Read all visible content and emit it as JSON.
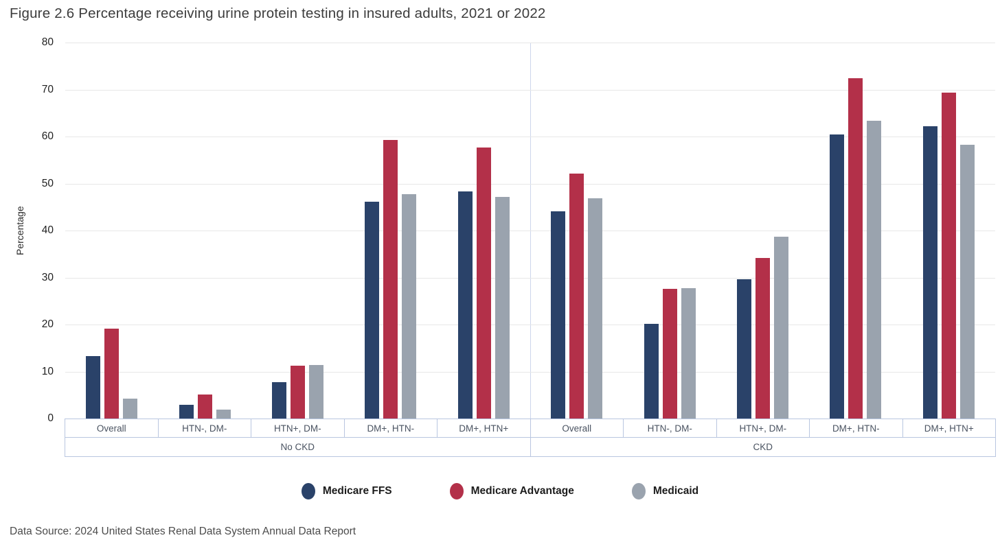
{
  "title": "Figure 2.6 Percentage receiving urine protein testing in insured adults, 2021 or 2022",
  "footer": {
    "data_source": "Data Source: 2024 United States Renal Data System Annual Data Report"
  },
  "style": {
    "grid_color": "#e7e7e7",
    "axis_box_border_color": "#b9c6e0",
    "group_separator_color": "#ccd6ec"
  },
  "chart_data": {
    "type": "bar",
    "title": "Figure 2.6 Percentage receiving urine protein testing in insured adults, 2021 or 2022",
    "xlabel": "",
    "ylabel": "Percentage",
    "ylim": [
      0,
      80
    ],
    "yticks": [
      0,
      10,
      20,
      30,
      40,
      50,
      60,
      70,
      80
    ],
    "grid": true,
    "legend_position": "bottom",
    "groups": [
      {
        "label": "No CKD",
        "categories": [
          "Overall",
          "HTN-, DM-",
          "HTN+, DM-",
          "DM+, HTN-",
          "DM+, HTN+"
        ]
      },
      {
        "label": "CKD",
        "categories": [
          "Overall",
          "HTN-, DM-",
          "HTN+, DM-",
          "DM+, HTN-",
          "DM+, HTN+"
        ]
      }
    ],
    "series": [
      {
        "name": "Medicare FFS",
        "color": "#2a4269",
        "values": [
          [
            13.3,
            2.9,
            7.8,
            46.2,
            48.3
          ],
          [
            44.1,
            20.1,
            29.7,
            60.4,
            62.2
          ]
        ]
      },
      {
        "name": "Medicare Advantage",
        "color": "#b33049",
        "values": [
          [
            19.1,
            5.1,
            11.2,
            59.3,
            57.6
          ],
          [
            52.1,
            27.6,
            34.1,
            72.4,
            69.3
          ]
        ]
      },
      {
        "name": "Medicaid",
        "color": "#9aa3ae",
        "values": [
          [
            4.3,
            1.9,
            11.4,
            47.7,
            47.1
          ],
          [
            46.8,
            27.8,
            38.7,
            63.3,
            58.3
          ]
        ]
      }
    ]
  }
}
